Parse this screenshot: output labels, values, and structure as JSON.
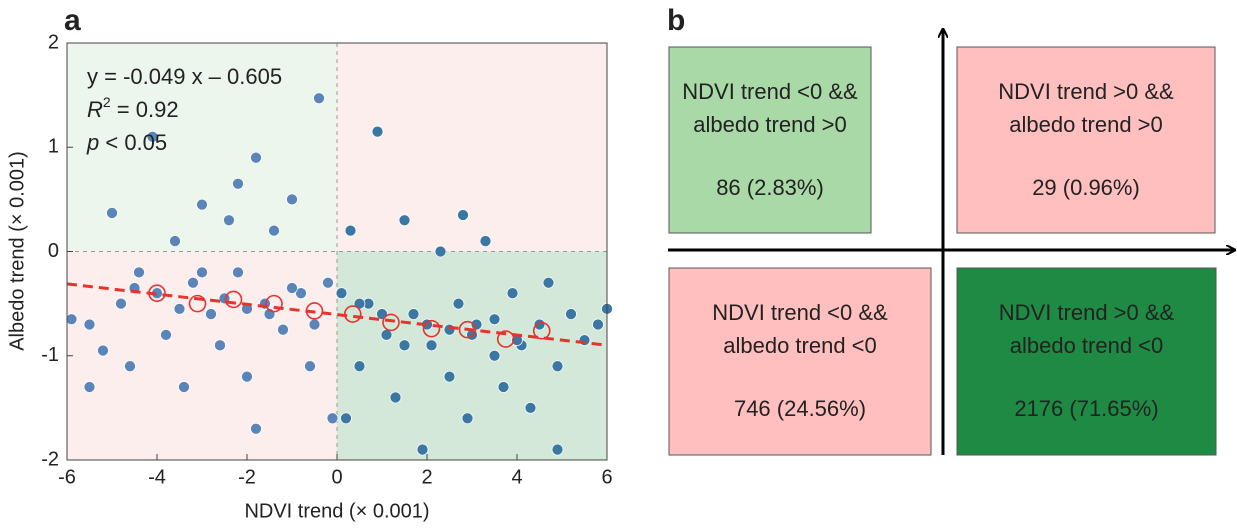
{
  "chart_data": {
    "type": "scatter",
    "panel_label": "a",
    "x_label": "NDVI trend (× 0.001)",
    "y_label": "Albedo trend (× 0.001)",
    "xlim": [
      -6,
      6
    ],
    "xticks": [
      -6,
      -4,
      -2,
      0,
      2,
      4,
      6
    ],
    "ylim": [
      -2,
      2
    ],
    "yticks": [
      -2,
      -1,
      0,
      1,
      2
    ],
    "equation": "y = -0.049 x – 0.605",
    "r2_symbol": "R",
    "r2_sup": "2",
    "r2_text": " = 0.92",
    "p_symbol": "p",
    "p_text": " < 0.05",
    "fit": {
      "slope": -0.049,
      "intercept": -0.605,
      "color": "#e8322d"
    },
    "series": [
      {
        "color": "#5b84b8",
        "x": [
          -5.9,
          -5.5,
          -5.2,
          -5,
          -4.8,
          -4.6,
          -4.4,
          -4.1,
          -4,
          -3.8,
          -3.6,
          -3.4,
          -3.2,
          -3,
          -2.8,
          -2.6,
          -2.4,
          -2.2,
          -2,
          -1.8,
          -1.6,
          -1.4,
          -1.2,
          -1,
          -0.8,
          -0.6,
          -0.4,
          -0.2,
          -0.1,
          -4.5,
          -3.5,
          -2.5,
          -1.5,
          -0.5,
          -3,
          -2,
          -1,
          -5.5,
          -1.8,
          -2.2
        ],
        "values": [
          -0.65,
          -0.7,
          -0.95,
          0.37,
          -0.5,
          -1.1,
          -0.2,
          1.1,
          -0.4,
          -0.8,
          0.1,
          -1.3,
          -0.3,
          0.45,
          -0.6,
          -0.9,
          0.3,
          -0.2,
          -1.2,
          0.9,
          -0.5,
          0.2,
          -0.75,
          0.5,
          -0.4,
          -1.1,
          1.47,
          -0.3,
          -1.6,
          -0.35,
          -0.55,
          -0.45,
          -0.6,
          -0.7,
          -0.2,
          -0.55,
          -0.35,
          -1.3,
          -1.7,
          0.65
        ]
      },
      {
        "color": "#3a78a3",
        "x": [
          0.1,
          0.3,
          0.5,
          0.7,
          0.9,
          1.1,
          1.3,
          1.5,
          1.7,
          1.9,
          2.1,
          2.3,
          2.5,
          2.7,
          2.9,
          3.1,
          3.3,
          3.5,
          3.7,
          3.9,
          4.1,
          4.3,
          4.5,
          4.7,
          4.9,
          5.2,
          5.5,
          5.8,
          6,
          4.9,
          1,
          2,
          3,
          4,
          0.5,
          1.5,
          2.5,
          3.5,
          0.2,
          2.8
        ],
        "values": [
          -0.4,
          0.2,
          -1.1,
          -0.5,
          1.15,
          -0.8,
          -1.4,
          0.3,
          -0.6,
          -1.9,
          -0.9,
          0,
          -1.2,
          -0.5,
          -1.6,
          -0.7,
          0.1,
          -1,
          -1.3,
          -0.4,
          -0.9,
          -1.5,
          -0.7,
          -0.3,
          -1.1,
          -0.6,
          -0.85,
          -0.7,
          -0.55,
          -1.9,
          -0.6,
          -0.7,
          -0.8,
          -0.85,
          -0.5,
          -0.9,
          -0.75,
          -0.65,
          -1.6,
          0.35
        ]
      }
    ],
    "bin_means": {
      "color": "#e8322d",
      "x": [
        -4,
        -3.1,
        -2.3,
        -1.4,
        -0.5,
        0.35,
        1.2,
        2.1,
        2.9,
        3.75,
        4.55
      ],
      "values": [
        -0.4,
        -0.5,
        -0.46,
        -0.5,
        -0.57,
        -0.6,
        -0.68,
        -0.74,
        -0.75,
        -0.84,
        -0.76
      ]
    }
  },
  "diagram": {
    "panel_label": "b",
    "quadrants": [
      {
        "lines": [
          "NDVI trend <0 &&",
          "albedo trend >0"
        ],
        "count": "86 (2.83%)",
        "color": "#a9d9a6"
      },
      {
        "lines": [
          "NDVI trend >0 &&",
          "albedo trend >0"
        ],
        "count": "29 (0.96%)",
        "color": "#ffbfbf"
      },
      {
        "lines": [
          "NDVI trend <0 &&",
          "albedo trend <0"
        ],
        "count": "746 (24.56%)",
        "color": "#ffbfbf"
      },
      {
        "lines": [
          "NDVI trend >0 &&",
          "albedo trend <0"
        ],
        "count": "2176 (71.65%)",
        "color": "#1f8a44"
      }
    ]
  }
}
